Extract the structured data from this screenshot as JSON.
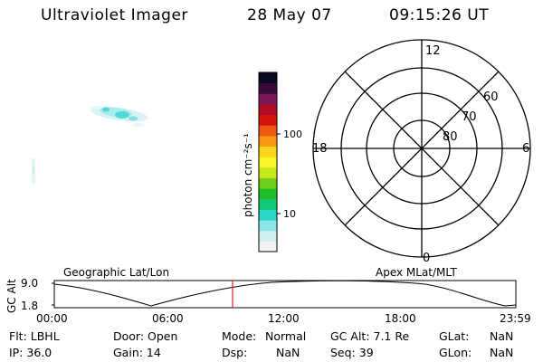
{
  "header": {
    "title": "Ultraviolet Imager",
    "date": "28 May 07",
    "time": "09:15:26 UT"
  },
  "colorbar": {
    "unit_label": "photon cm⁻²s⁻¹",
    "tick_labels": [
      "100",
      "10"
    ],
    "colors": [
      "#f2f2f2",
      "#cfeff0",
      "#8be6e8",
      "#2ad6c9",
      "#14c878",
      "#1fbe2a",
      "#6fd01a",
      "#c7e81d",
      "#f7f72a",
      "#fbd51b",
      "#f89a16",
      "#ef5a12",
      "#d7140f",
      "#b00d25",
      "#7a1a55",
      "#3a0b3a",
      "#0b0720"
    ]
  },
  "polar_plot": {
    "mlt_labels": {
      "top": "12",
      "bottom": "0",
      "left": "18",
      "right": "6"
    },
    "lat_labels": [
      "60",
      "70",
      "80"
    ]
  },
  "timeline": {
    "left_title": "Geographic Lat/Lon",
    "right_title": "Apex MLat/MLT",
    "axis_title": "GC Alt",
    "y_ticks": [
      "9.0",
      "1.8"
    ],
    "x_ticks": [
      "00:00",
      "06:00",
      "12:00",
      "18:00",
      "23:59"
    ],
    "current_time_color": "#e02020"
  },
  "info": {
    "flt": "Flt: LBHL",
    "ip": "IP: 36.0",
    "door": "Door: Open",
    "gain": "Gain: 14",
    "mode_label": "Mode:",
    "mode_value": "Normal",
    "dsp_label": "Dsp:",
    "dsp_value": "NaN",
    "gcalt": "GC Alt: 7.1 Re",
    "seq": "Seq: 39",
    "glat_label": "GLat:",
    "glat_value": "NaN",
    "glon_label": "GLon:",
    "glon_value": "NaN"
  }
}
